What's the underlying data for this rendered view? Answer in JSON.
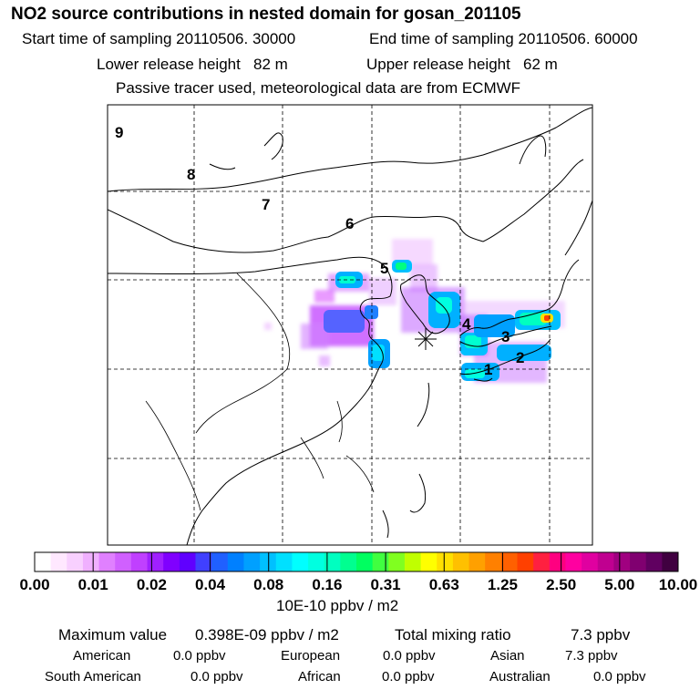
{
  "header": {
    "title": "NO2 source contributions in nested domain for gosan_201105",
    "start_label": "Start time of sampling 20110506. 30000",
    "end_label": "End time of sampling 20110506. 60000",
    "lower_label": "Lower release height   82 m",
    "upper_label": "Upper release height   62 m",
    "note": "Passive tracer used, meteorological data are from ECMWF"
  },
  "map": {
    "background": "#ffffff",
    "receptor_symbol": "asterisk",
    "release_labels": [
      "9",
      "8",
      "7",
      "6",
      "5",
      "4",
      "3",
      "2",
      "1"
    ]
  },
  "colorbar": {
    "unit": "10E-10 ppbv / m2",
    "ticks": [
      "0.00",
      "0.01",
      "0.02",
      "0.04",
      "0.08",
      "0.16",
      "0.31",
      "0.63",
      "1.25",
      "2.50",
      "5.00",
      "10.00"
    ],
    "colors": [
      "#ffffff",
      "#ffe8ff",
      "#f8d0ff",
      "#f0b0ff",
      "#e080ff",
      "#d060ff",
      "#c040ff",
      "#a020ff",
      "#8000ff",
      "#6000ff",
      "#4040ff",
      "#2060ff",
      "#0080ff",
      "#00a0ff",
      "#00c0ff",
      "#00e0ff",
      "#00ffff",
      "#00ffe0",
      "#00ffc0",
      "#00ff90",
      "#00ff60",
      "#40ff40",
      "#80ff20",
      "#c0ff00",
      "#ffff00",
      "#ffe000",
      "#ffc000",
      "#ffa000",
      "#ff8000",
      "#ff6000",
      "#ff4000",
      "#ff2040",
      "#ff0080",
      "#ff00a0",
      "#e000a0",
      "#c00090",
      "#a00080",
      "#800070",
      "#600060",
      "#400040"
    ]
  },
  "summary": {
    "max_label": "Maximum value",
    "max_value": "0.398E-09 ppbv / m2",
    "total_label": "Total mixing ratio",
    "total_value": "7.3 ppbv",
    "regions": [
      {
        "name": "American",
        "value": "0.0 ppbv"
      },
      {
        "name": "European",
        "value": "0.0 ppbv"
      },
      {
        "name": "Asian",
        "value": "7.3 ppbv"
      },
      {
        "name": "South American",
        "value": "0.0 ppbv"
      },
      {
        "name": "African",
        "value": "0.0 ppbv"
      },
      {
        "name": "Australian",
        "value": "0.0 ppbv"
      }
    ]
  }
}
